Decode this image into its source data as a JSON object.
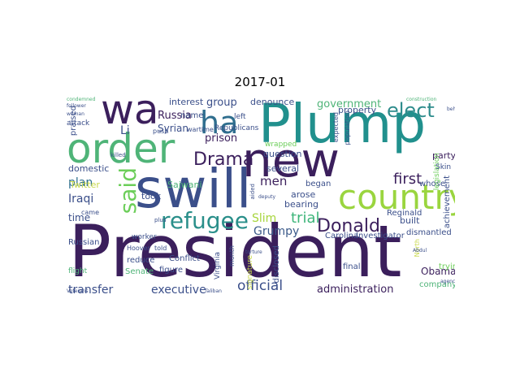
{
  "title": "2017-01",
  "words": [
    {
      "text": "President",
      "color": "#3b1f5c"
    },
    {
      "text": "Plump",
      "color": "#21908d"
    },
    {
      "text": "swill",
      "color": "#3b4f8a"
    },
    {
      "text": "new",
      "color": "#3b1f5c"
    },
    {
      "text": "order",
      "color": "#4fb478"
    },
    {
      "text": "wa",
      "color": "#3b1f5c"
    },
    {
      "text": "country",
      "color": "#9ad53f"
    },
    {
      "text": "ha",
      "color": "#2f6e8e"
    },
    {
      "text": "said",
      "color": "#6cce59"
    },
    {
      "text": "refugee",
      "color": "#2a8f8a"
    },
    {
      "text": "elect",
      "color": "#2e8c8c"
    },
    {
      "text": "Donald",
      "color": "#3b1f5c"
    },
    {
      "text": "Drama",
      "color": "#3b1f5c"
    },
    {
      "text": "trial",
      "color": "#3eb57a"
    },
    {
      "text": "Slim",
      "color": "#a7d53c"
    },
    {
      "text": "first",
      "color": "#3b1f5c"
    },
    {
      "text": "Grumpy",
      "color": "#3b5a8a"
    },
    {
      "text": "administration",
      "color": "#3b1f5c"
    },
    {
      "text": "official",
      "color": "#3b4f8a"
    },
    {
      "text": "executive",
      "color": "#3b4f8a"
    },
    {
      "text": "transfer",
      "color": "#3b4f8a"
    },
    {
      "text": "government",
      "color": "#4fb478"
    },
    {
      "text": "Russia",
      "color": "#3b1f5c"
    },
    {
      "text": "Syrian",
      "color": "#3b4f8a"
    },
    {
      "text": "prison",
      "color": "#3b1f5c"
    },
    {
      "text": "Iraqi",
      "color": "#3b4f8a"
    },
    {
      "text": "plan",
      "color": "#2e6f8e"
    },
    {
      "text": "men",
      "color": "#3b1f5c"
    },
    {
      "text": "Li",
      "color": "#3b4f8a"
    },
    {
      "text": "group",
      "color": "#3b4f8a"
    },
    {
      "text": "interest",
      "color": "#3b4f8a"
    },
    {
      "text": "Obamaâ",
      "color": "#3b1f5c"
    },
    {
      "text": "built",
      "color": "#3b4f8a"
    },
    {
      "text": "party",
      "color": "#3b1f5c"
    },
    {
      "text": "property",
      "color": "#3b4f8a"
    },
    {
      "text": "several",
      "color": "#3b4f8a"
    },
    {
      "text": "Conflict",
      "color": "#3b4f8a"
    },
    {
      "text": "Senate",
      "color": "#4fb478"
    },
    {
      "text": "time",
      "color": "#3b4f8a"
    },
    {
      "text": "took",
      "color": "#3b4f8a"
    },
    {
      "text": "question",
      "color": "#3b4f8a"
    },
    {
      "text": "domestic",
      "color": "#3b4f8a"
    },
    {
      "text": "denounce",
      "color": "#3b4f8a"
    },
    {
      "text": "arose",
      "color": "#3b4f8a"
    },
    {
      "text": "bearing",
      "color": "#3b4f8a"
    },
    {
      "text": "company",
      "color": "#4fb478"
    },
    {
      "text": "trying",
      "color": "#6cce59"
    },
    {
      "text": "Reginald",
      "color": "#3b4f8a"
    },
    {
      "text": "Sajwani",
      "color": "#4fb478"
    },
    {
      "text": "Twitter",
      "color": "#c8d94a"
    },
    {
      "text": "Russian",
      "color": "#3b4f8a"
    },
    {
      "text": "Carolina",
      "color": "#3b4f8a"
    },
    {
      "text": "Investigator",
      "color": "#3b4f8a"
    },
    {
      "text": "dismantled",
      "color": "#3b4f8a"
    },
    {
      "text": "whose",
      "color": "#3b4f8a"
    },
    {
      "text": "disclosed",
      "color": "#3b4f8a"
    },
    {
      "text": "figure",
      "color": "#3b4f8a"
    },
    {
      "text": "reduce",
      "color": "#3b4f8a"
    },
    {
      "text": "began",
      "color": "#3b4f8a"
    },
    {
      "text": "final",
      "color": "#3b4f8a"
    },
    {
      "text": "achievement",
      "color": "#3b4f8a"
    },
    {
      "text": "legislation",
      "color": "#6cce59"
    },
    {
      "text": "praised",
      "color": "#3b4f8a"
    },
    {
      "text": "name",
      "color": "#3b4f8a"
    },
    {
      "text": "left",
      "color": "#3b4f8a"
    },
    {
      "text": "wrapped",
      "color": "#6cce59"
    },
    {
      "text": "Republicans",
      "color": "#3b4f8a"
    },
    {
      "text": "worker",
      "color": "#3b4f8a"
    },
    {
      "text": "Virginia",
      "color": "#3b4f8a"
    },
    {
      "text": "signature",
      "color": "#c8d94a"
    },
    {
      "text": "Skin",
      "color": "#3b4f8a"
    },
    {
      "text": "attack",
      "color": "#3b4f8a"
    },
    {
      "text": "came",
      "color": "#3b4f8a"
    },
    {
      "text": "push",
      "color": "#3b4f8a"
    },
    {
      "text": "wartime",
      "color": "#3b4f8a"
    },
    {
      "text": "expected",
      "color": "#3b4f8a"
    },
    {
      "text": "population",
      "color": "#3b4f8a"
    },
    {
      "text": "flight",
      "color": "#4fb478"
    },
    {
      "text": "North",
      "color": "#c8d94a"
    },
    {
      "text": "Hoover",
      "color": "#3b4f8a"
    },
    {
      "text": "month",
      "color": "#3b4f8a"
    },
    {
      "text": "told",
      "color": "#3b4f8a"
    },
    {
      "text": "killed",
      "color": "#3b4f8a"
    },
    {
      "text": "plus",
      "color": "#3b4f8a"
    },
    {
      "text": "condemned",
      "color": "#4fb478"
    },
    {
      "text": "follower",
      "color": "#3b4f8a"
    },
    {
      "text": "woman",
      "color": "#3b4f8a"
    },
    {
      "text": "Veterans",
      "color": "#3b4f8a"
    },
    {
      "text": "Taliban",
      "color": "#3b4f8a"
    },
    {
      "text": "construction",
      "color": "#4fb478"
    },
    {
      "text": "behind",
      "color": "#3b4f8a"
    },
    {
      "text": "Abdul",
      "color": "#3b4f8a"
    },
    {
      "text": "deputy",
      "color": "#3b4f8a"
    },
    {
      "text": "torture",
      "color": "#3b4f8a"
    },
    {
      "text": "agency",
      "color": "#3b4f8a"
    },
    {
      "text": "aided",
      "color": "#3b4f8a"
    }
  ]
}
